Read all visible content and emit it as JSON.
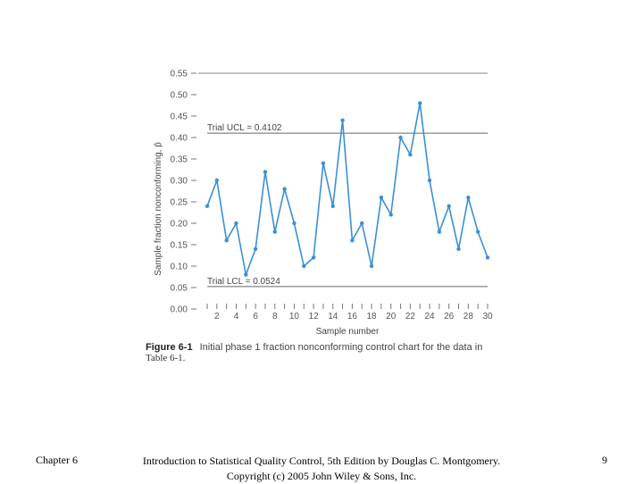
{
  "chart_data": {
    "type": "line",
    "title": "",
    "xlabel": "Sample number",
    "ylabel": "Sample fraction nonconforming, p̂",
    "xlim": [
      1,
      30
    ],
    "ylim": [
      0,
      0.55
    ],
    "x": [
      1,
      2,
      3,
      4,
      5,
      6,
      7,
      8,
      9,
      10,
      11,
      12,
      13,
      14,
      15,
      16,
      17,
      18,
      19,
      20,
      21,
      22,
      23,
      24,
      25,
      26,
      27,
      28,
      29,
      30
    ],
    "y": [
      0.24,
      0.3,
      0.16,
      0.2,
      0.08,
      0.14,
      0.32,
      0.18,
      0.28,
      0.2,
      0.1,
      0.12,
      0.34,
      0.24,
      0.44,
      0.16,
      0.2,
      0.1,
      0.26,
      0.22,
      0.4,
      0.36,
      0.48,
      0.3,
      0.18,
      0.24,
      0.14,
      0.26,
      0.18,
      0.12
    ],
    "yticks": [
      0,
      0.05,
      0.1,
      0.15,
      0.2,
      0.25,
      0.3,
      0.35,
      0.4,
      0.45,
      0.5,
      0.55
    ],
    "ytick_labels": [
      "0.00",
      "0.05",
      "0.10",
      "0.15",
      "0.20",
      "0.25",
      "0.30",
      "0.35",
      "0.40",
      "0.45",
      "0.50",
      "0.55"
    ],
    "xticks": [
      2,
      4,
      6,
      8,
      10,
      12,
      14,
      16,
      18,
      20,
      22,
      24,
      26,
      28,
      30
    ],
    "xtick_labels": [
      "2",
      "4",
      "6",
      "8",
      "10",
      "12",
      "14",
      "16",
      "18",
      "20",
      "22",
      "24",
      "26",
      "28",
      "30"
    ],
    "limits": [
      {
        "name": "ucl",
        "label": "Trial UCL = 0.4102",
        "value": 0.4102
      },
      {
        "name": "lcl",
        "label": "Trial LCL = 0.0524",
        "value": 0.0524
      }
    ],
    "series_color": "#3a8fd6",
    "grid": false
  },
  "caption": {
    "figure_label": "Figure 6-1",
    "line1": "Initial phase 1 fraction nonconforming control chart for the data in",
    "line2": "Table 6-1."
  },
  "footer": {
    "left": "Chapter 6",
    "center_line1": "Introduction to Statistical Quality Control, 5th Edition by Douglas C. Montgomery.",
    "center_line2": "Copyright (c) 2005  John Wiley & Sons, Inc.",
    "page_number": "9"
  }
}
